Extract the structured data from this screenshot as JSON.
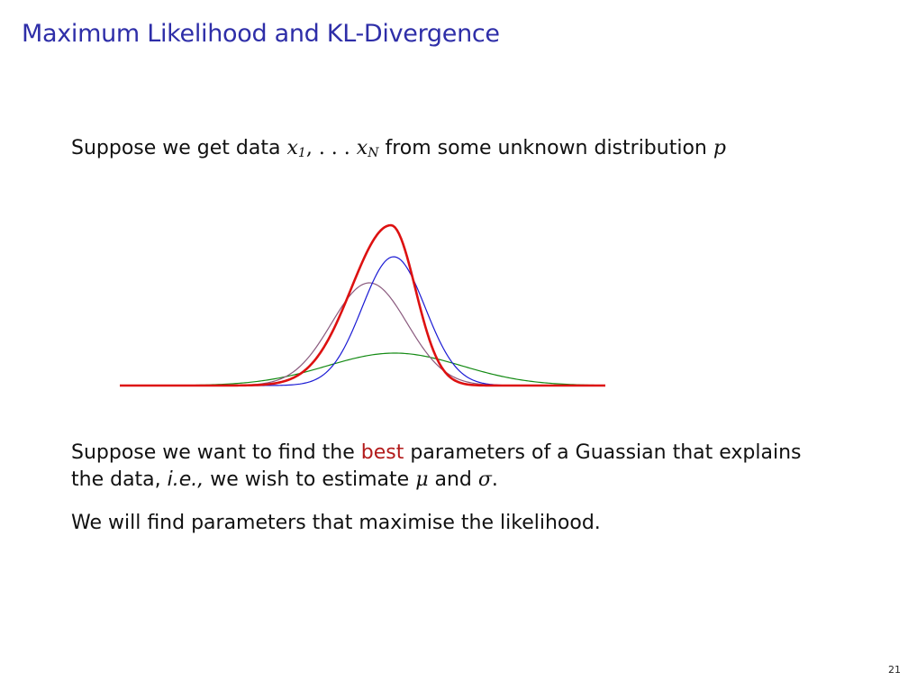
{
  "slide": {
    "title": "Maximum Likelihood and KL-Divergence",
    "page_number": "21"
  },
  "para1": {
    "prefix": "Suppose we get data ",
    "math_x1": "x",
    "math_x1_sub": "1",
    "math_ellipsis": ", . . . ",
    "math_xN": "x",
    "math_xN_sub": "N",
    "middle": " from some unknown distribution ",
    "math_p": "p"
  },
  "para2": {
    "line1_prefix": "Suppose we want to find the ",
    "line1_highlight": "best",
    "line1_suffix": " parameters of a Guassian that explains",
    "line2_prefix": "the data, ",
    "line2_italic": "i.e.,",
    "line2_middle": " we wish to estimate ",
    "math_mu": "μ",
    "line2_and": " and ",
    "math_sigma": "σ",
    "line2_end": "."
  },
  "para3": {
    "text": "We will find parameters that maximise the likelihood."
  },
  "figure": {
    "colors": {
      "data": "#dd1111",
      "blue": "#1a1ad4",
      "purple": "#8a5a7e",
      "green": "#138a13"
    }
  }
}
